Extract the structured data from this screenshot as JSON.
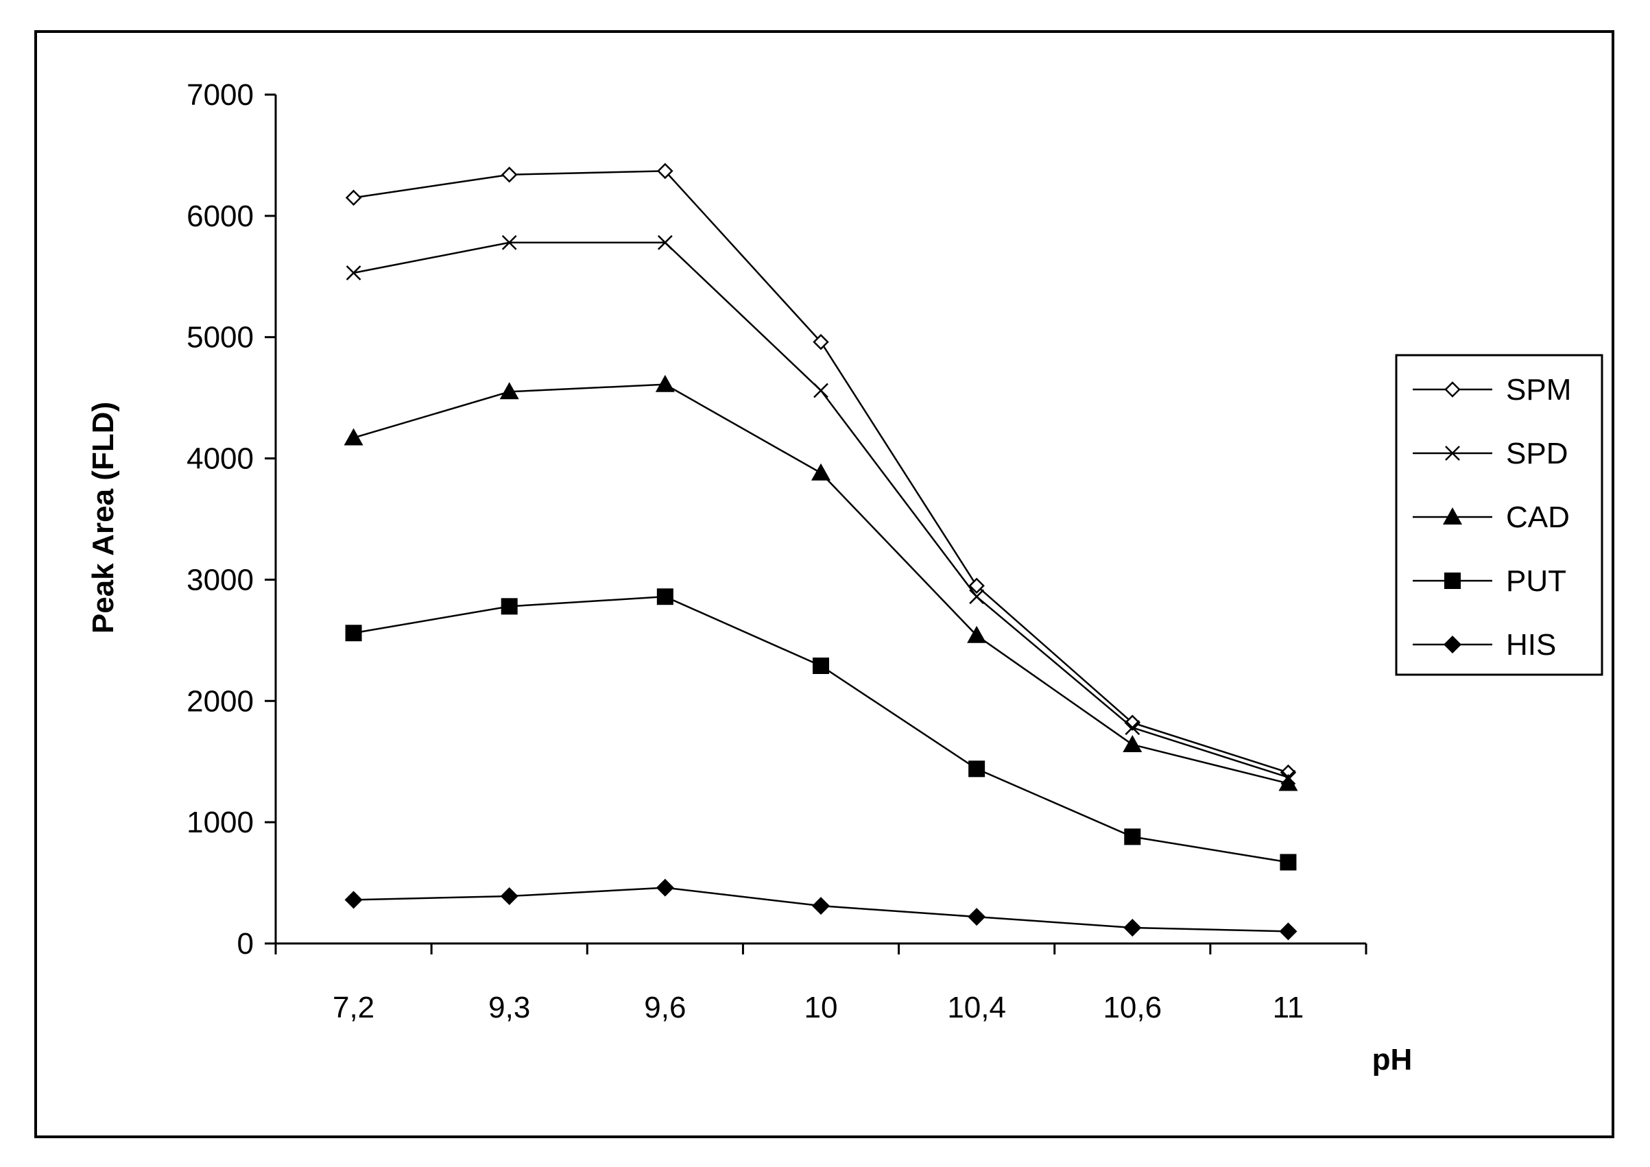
{
  "chart_data": {
    "type": "line",
    "xlabel": "pH",
    "ylabel": "Peak Area (FLD)",
    "categories": [
      "7,2",
      "9,3",
      "9,6",
      "10",
      "10,4",
      "10,6",
      "11"
    ],
    "ylim": [
      0,
      7000
    ],
    "yticks": [
      "0",
      "1000",
      "2000",
      "3000",
      "4000",
      "5000",
      "6000",
      "7000"
    ],
    "grid": false,
    "legend_position": "right",
    "series": [
      {
        "name": "SPM",
        "marker": "open-diamond",
        "values": [
          6150,
          6340,
          6370,
          4960,
          2950,
          1820,
          1410
        ]
      },
      {
        "name": "SPD",
        "marker": "x",
        "values": [
          5530,
          5780,
          5780,
          4560,
          2860,
          1780,
          1370
        ]
      },
      {
        "name": "CAD",
        "marker": "filled-triangle",
        "values": [
          4170,
          4550,
          4610,
          3880,
          2540,
          1640,
          1320
        ]
      },
      {
        "name": "PUT",
        "marker": "filled-square",
        "values": [
          2560,
          2780,
          2860,
          2290,
          1440,
          880,
          670
        ]
      },
      {
        "name": "HIS",
        "marker": "filled-diamond",
        "values": [
          360,
          390,
          460,
          310,
          220,
          130,
          100
        ]
      }
    ],
    "colors": {
      "line": "#000000",
      "background": "#ffffff"
    }
  }
}
